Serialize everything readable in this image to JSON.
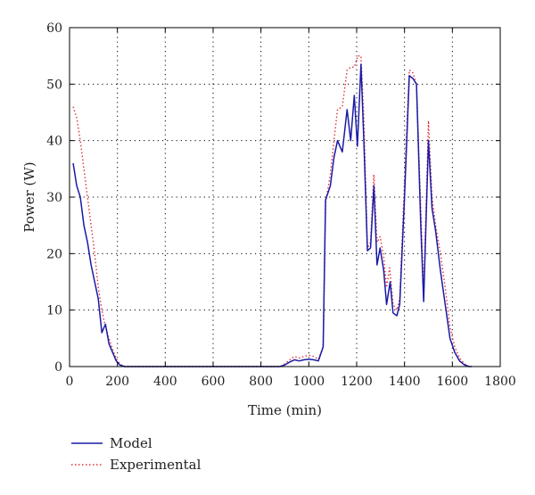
{
  "chart_data": {
    "type": "line",
    "xlabel": "Time (min)",
    "ylabel": "Power (W)",
    "xlim": [
      0,
      1800
    ],
    "ylim": [
      0,
      60
    ],
    "xticks": [
      "0",
      "200",
      "400",
      "600",
      "800",
      "1000",
      "1200",
      "1400",
      "1600",
      "1800"
    ],
    "yticks": [
      "0",
      "10",
      "20",
      "30",
      "40",
      "50",
      "60"
    ],
    "grid": "dotted",
    "legend_placement": "below",
    "series": [
      {
        "name": "Model",
        "color": "#1a1aa6",
        "style": "solid",
        "points": [
          [
            15,
            36
          ],
          [
            30,
            32
          ],
          [
            45,
            30
          ],
          [
            60,
            25
          ],
          [
            75,
            22
          ],
          [
            90,
            18
          ],
          [
            105,
            15
          ],
          [
            120,
            12
          ],
          [
            135,
            6
          ],
          [
            150,
            7.5
          ],
          [
            165,
            4
          ],
          [
            180,
            2.5
          ],
          [
            195,
            1
          ],
          [
            210,
            0.3
          ],
          [
            230,
            0
          ],
          [
            400,
            0
          ],
          [
            600,
            0
          ],
          [
            800,
            0
          ],
          [
            880,
            0
          ],
          [
            900,
            0.3
          ],
          [
            920,
            0.8
          ],
          [
            940,
            1.2
          ],
          [
            960,
            1
          ],
          [
            980,
            1.2
          ],
          [
            1000,
            1.3
          ],
          [
            1020,
            1.2
          ],
          [
            1040,
            1
          ],
          [
            1060,
            3.5
          ],
          [
            1070,
            29.5
          ],
          [
            1090,
            32
          ],
          [
            1105,
            37
          ],
          [
            1120,
            40
          ],
          [
            1140,
            38
          ],
          [
            1160,
            45.5
          ],
          [
            1175,
            40
          ],
          [
            1190,
            48
          ],
          [
            1203,
            39
          ],
          [
            1218,
            53.5
          ],
          [
            1230,
            40
          ],
          [
            1245,
            20.5
          ],
          [
            1258,
            21
          ],
          [
            1272,
            32
          ],
          [
            1285,
            18
          ],
          [
            1298,
            21
          ],
          [
            1313,
            17
          ],
          [
            1325,
            11
          ],
          [
            1340,
            15
          ],
          [
            1352,
            9.5
          ],
          [
            1368,
            9
          ],
          [
            1380,
            11
          ],
          [
            1400,
            30
          ],
          [
            1420,
            51.5
          ],
          [
            1435,
            51
          ],
          [
            1450,
            50
          ],
          [
            1468,
            25
          ],
          [
            1480,
            11.5
          ],
          [
            1500,
            40
          ],
          [
            1515,
            28
          ],
          [
            1530,
            24
          ],
          [
            1550,
            17
          ],
          [
            1570,
            11
          ],
          [
            1590,
            5
          ],
          [
            1610,
            2.5
          ],
          [
            1630,
            1
          ],
          [
            1650,
            0.3
          ],
          [
            1670,
            0
          ],
          [
            1680,
            0
          ]
        ]
      },
      {
        "name": "Experimental",
        "color": "#e0303a",
        "style": "dotted",
        "points": [
          [
            15,
            46
          ],
          [
            30,
            44
          ],
          [
            45,
            40
          ],
          [
            60,
            35
          ],
          [
            75,
            30
          ],
          [
            90,
            25
          ],
          [
            105,
            20
          ],
          [
            120,
            14
          ],
          [
            135,
            10
          ],
          [
            150,
            7
          ],
          [
            165,
            5
          ],
          [
            180,
            3
          ],
          [
            200,
            1
          ],
          [
            215,
            0.3
          ],
          [
            230,
            0
          ],
          [
            400,
            0
          ],
          [
            600,
            0
          ],
          [
            800,
            0
          ],
          [
            880,
            0
          ],
          [
            900,
            0.5
          ],
          [
            920,
            1.2
          ],
          [
            940,
            1.8
          ],
          [
            960,
            1.5
          ],
          [
            980,
            1.8
          ],
          [
            1000,
            2
          ],
          [
            1020,
            1.8
          ],
          [
            1040,
            1.3
          ],
          [
            1060,
            3.5
          ],
          [
            1070,
            29
          ],
          [
            1090,
            34
          ],
          [
            1105,
            40
          ],
          [
            1120,
            45.5
          ],
          [
            1140,
            46
          ],
          [
            1160,
            52.5
          ],
          [
            1175,
            53
          ],
          [
            1190,
            53
          ],
          [
            1205,
            55
          ],
          [
            1218,
            55
          ],
          [
            1230,
            44
          ],
          [
            1245,
            21
          ],
          [
            1258,
            22
          ],
          [
            1272,
            34
          ],
          [
            1285,
            22
          ],
          [
            1298,
            23
          ],
          [
            1313,
            19.5
          ],
          [
            1325,
            14
          ],
          [
            1338,
            17.5
          ],
          [
            1352,
            11
          ],
          [
            1368,
            10
          ],
          [
            1380,
            12
          ],
          [
            1400,
            33
          ],
          [
            1420,
            52.5
          ],
          [
            1435,
            52
          ],
          [
            1450,
            50
          ],
          [
            1468,
            28
          ],
          [
            1480,
            13
          ],
          [
            1500,
            43.5
          ],
          [
            1515,
            30
          ],
          [
            1530,
            25
          ],
          [
            1550,
            20
          ],
          [
            1570,
            14
          ],
          [
            1590,
            7
          ],
          [
            1610,
            3.5
          ],
          [
            1630,
            1.5
          ],
          [
            1650,
            0.5
          ],
          [
            1670,
            0
          ],
          [
            1680,
            0
          ]
        ]
      }
    ]
  }
}
